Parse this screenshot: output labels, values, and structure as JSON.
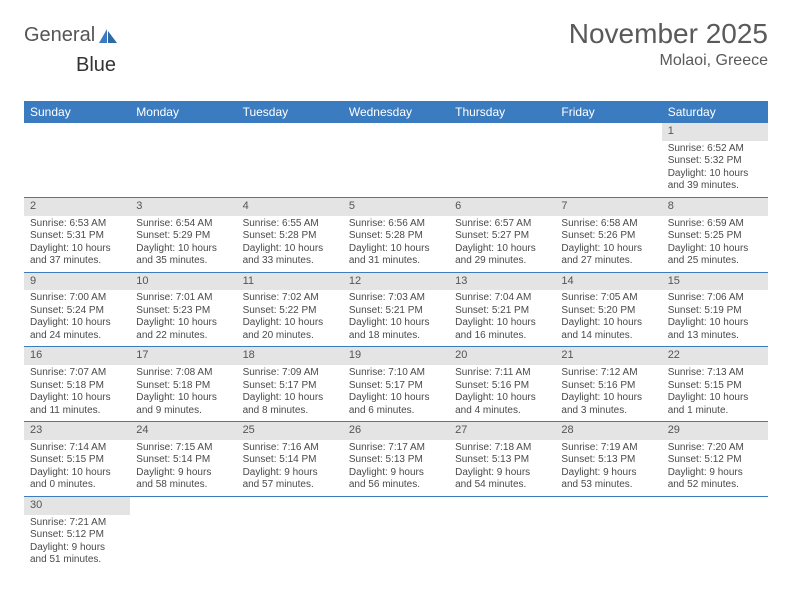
{
  "logo": {
    "text1": "General",
    "text2": "Blue"
  },
  "title": {
    "month": "November 2025",
    "location": "Molaoi, Greece"
  },
  "colors": {
    "header_bg": "#3b7bbf",
    "header_fg": "#ffffff",
    "daynum_bg": "#e4e4e4",
    "row_divider": "#3b7bbf",
    "text": "#4a4a4a"
  },
  "calendar": {
    "type": "table",
    "columns": [
      "Sunday",
      "Monday",
      "Tuesday",
      "Wednesday",
      "Thursday",
      "Friday",
      "Saturday"
    ],
    "weeks": [
      [
        null,
        null,
        null,
        null,
        null,
        null,
        {
          "day": "1",
          "sunrise": "6:52 AM",
          "sunset": "5:32 PM",
          "daylight": "10 hours and 39 minutes."
        }
      ],
      [
        {
          "day": "2",
          "sunrise": "6:53 AM",
          "sunset": "5:31 PM",
          "daylight": "10 hours and 37 minutes."
        },
        {
          "day": "3",
          "sunrise": "6:54 AM",
          "sunset": "5:29 PM",
          "daylight": "10 hours and 35 minutes."
        },
        {
          "day": "4",
          "sunrise": "6:55 AM",
          "sunset": "5:28 PM",
          "daylight": "10 hours and 33 minutes."
        },
        {
          "day": "5",
          "sunrise": "6:56 AM",
          "sunset": "5:28 PM",
          "daylight": "10 hours and 31 minutes."
        },
        {
          "day": "6",
          "sunrise": "6:57 AM",
          "sunset": "5:27 PM",
          "daylight": "10 hours and 29 minutes."
        },
        {
          "day": "7",
          "sunrise": "6:58 AM",
          "sunset": "5:26 PM",
          "daylight": "10 hours and 27 minutes."
        },
        {
          "day": "8",
          "sunrise": "6:59 AM",
          "sunset": "5:25 PM",
          "daylight": "10 hours and 25 minutes."
        }
      ],
      [
        {
          "day": "9",
          "sunrise": "7:00 AM",
          "sunset": "5:24 PM",
          "daylight": "10 hours and 24 minutes."
        },
        {
          "day": "10",
          "sunrise": "7:01 AM",
          "sunset": "5:23 PM",
          "daylight": "10 hours and 22 minutes."
        },
        {
          "day": "11",
          "sunrise": "7:02 AM",
          "sunset": "5:22 PM",
          "daylight": "10 hours and 20 minutes."
        },
        {
          "day": "12",
          "sunrise": "7:03 AM",
          "sunset": "5:21 PM",
          "daylight": "10 hours and 18 minutes."
        },
        {
          "day": "13",
          "sunrise": "7:04 AM",
          "sunset": "5:21 PM",
          "daylight": "10 hours and 16 minutes."
        },
        {
          "day": "14",
          "sunrise": "7:05 AM",
          "sunset": "5:20 PM",
          "daylight": "10 hours and 14 minutes."
        },
        {
          "day": "15",
          "sunrise": "7:06 AM",
          "sunset": "5:19 PM",
          "daylight": "10 hours and 13 minutes."
        }
      ],
      [
        {
          "day": "16",
          "sunrise": "7:07 AM",
          "sunset": "5:18 PM",
          "daylight": "10 hours and 11 minutes."
        },
        {
          "day": "17",
          "sunrise": "7:08 AM",
          "sunset": "5:18 PM",
          "daylight": "10 hours and 9 minutes."
        },
        {
          "day": "18",
          "sunrise": "7:09 AM",
          "sunset": "5:17 PM",
          "daylight": "10 hours and 8 minutes."
        },
        {
          "day": "19",
          "sunrise": "7:10 AM",
          "sunset": "5:17 PM",
          "daylight": "10 hours and 6 minutes."
        },
        {
          "day": "20",
          "sunrise": "7:11 AM",
          "sunset": "5:16 PM",
          "daylight": "10 hours and 4 minutes."
        },
        {
          "day": "21",
          "sunrise": "7:12 AM",
          "sunset": "5:16 PM",
          "daylight": "10 hours and 3 minutes."
        },
        {
          "day": "22",
          "sunrise": "7:13 AM",
          "sunset": "5:15 PM",
          "daylight": "10 hours and 1 minute."
        }
      ],
      [
        {
          "day": "23",
          "sunrise": "7:14 AM",
          "sunset": "5:15 PM",
          "daylight": "10 hours and 0 minutes."
        },
        {
          "day": "24",
          "sunrise": "7:15 AM",
          "sunset": "5:14 PM",
          "daylight": "9 hours and 58 minutes."
        },
        {
          "day": "25",
          "sunrise": "7:16 AM",
          "sunset": "5:14 PM",
          "daylight": "9 hours and 57 minutes."
        },
        {
          "day": "26",
          "sunrise": "7:17 AM",
          "sunset": "5:13 PM",
          "daylight": "9 hours and 56 minutes."
        },
        {
          "day": "27",
          "sunrise": "7:18 AM",
          "sunset": "5:13 PM",
          "daylight": "9 hours and 54 minutes."
        },
        {
          "day": "28",
          "sunrise": "7:19 AM",
          "sunset": "5:13 PM",
          "daylight": "9 hours and 53 minutes."
        },
        {
          "day": "29",
          "sunrise": "7:20 AM",
          "sunset": "5:12 PM",
          "daylight": "9 hours and 52 minutes."
        }
      ],
      [
        {
          "day": "30",
          "sunrise": "7:21 AM",
          "sunset": "5:12 PM",
          "daylight": "9 hours and 51 minutes."
        },
        null,
        null,
        null,
        null,
        null,
        null
      ]
    ],
    "labels": {
      "sunrise": "Sunrise:",
      "sunset": "Sunset:",
      "daylight": "Daylight:"
    }
  }
}
